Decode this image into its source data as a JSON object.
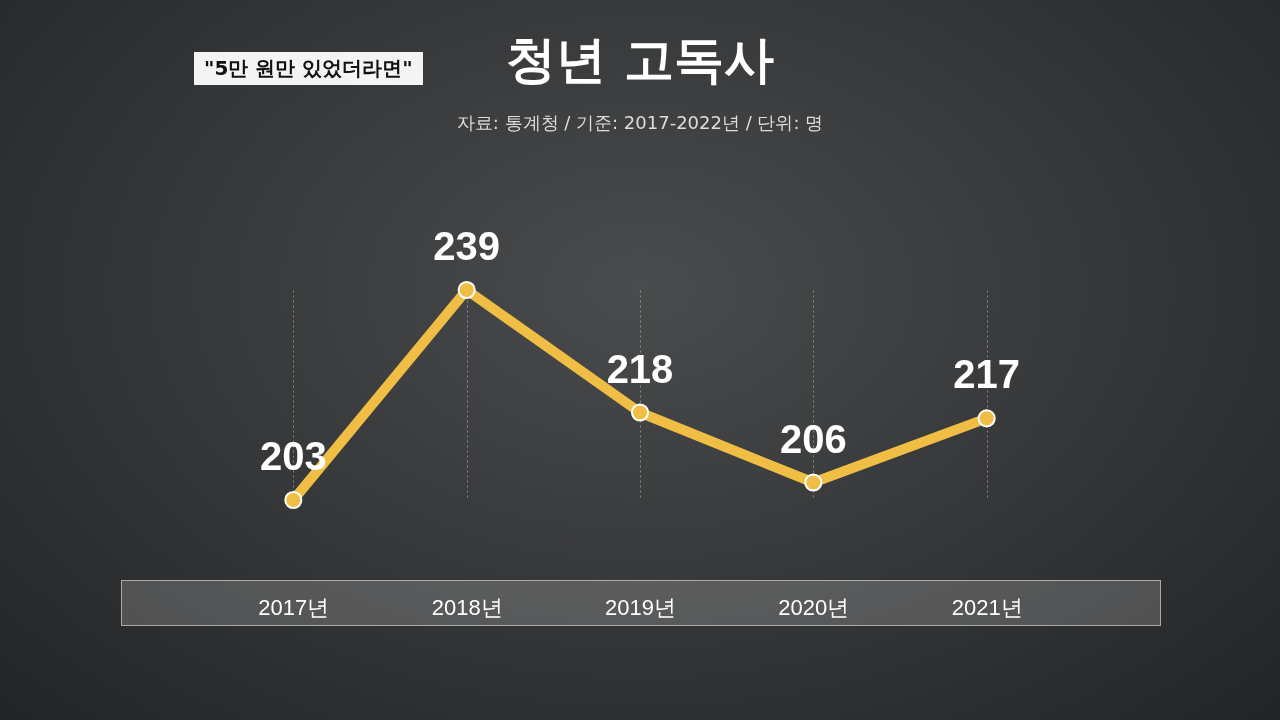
{
  "chart_data": {
    "type": "line",
    "title": "청년 고독사",
    "subtitle": "자료: 통계청 / 기준: 2017-2022년 / 단위: 명",
    "annotations": [
      "\"5만 원만 있었더라면\""
    ],
    "categories": [
      "2017년",
      "2018년",
      "2019년",
      "2020년",
      "2021년"
    ],
    "values": [
      203,
      239,
      218,
      206,
      217
    ],
    "color": "#f0be45",
    "marker": "circle",
    "data_labels": true,
    "grid": "x"
  }
}
